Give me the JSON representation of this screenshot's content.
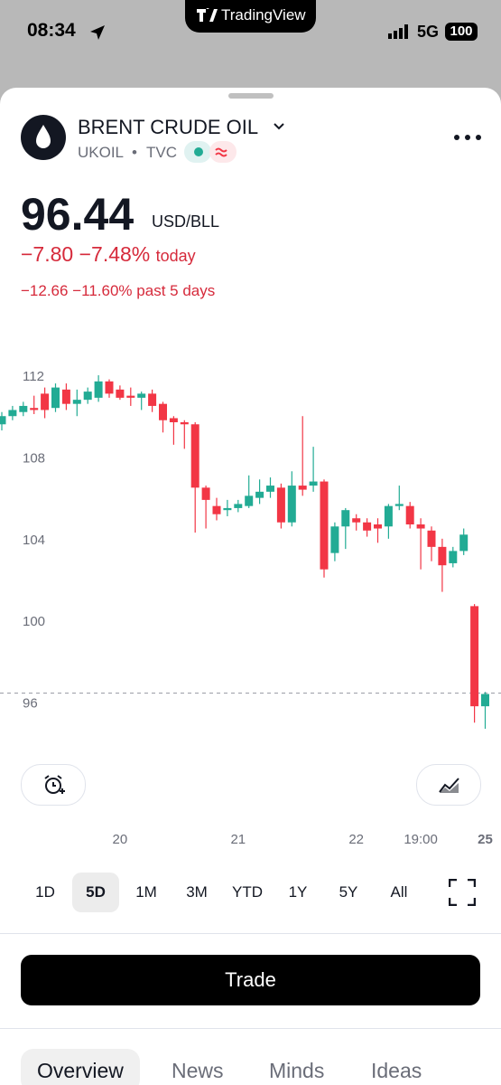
{
  "status_bar": {
    "time": "08:34",
    "app": "TradingView",
    "network": "5G",
    "battery": "100"
  },
  "header": {
    "name": "BRENT CRUDE OIL",
    "symbol": "UKOIL",
    "separator": "•",
    "exchange": "TVC"
  },
  "price": {
    "value": "96.44",
    "currency": "USD/BLL",
    "change_today": "−7.80",
    "change_today_pct": "−7.48%",
    "today_label": "today",
    "change_5d": "−12.66",
    "change_5d_pct": "−11.60%",
    "label_5d": "past 5 days"
  },
  "chart_data": {
    "type": "candlestick",
    "up_color": "#22ab94",
    "down_color": "#f23645",
    "categories": [
      null,
      null,
      null,
      null,
      null,
      null,
      null,
      null,
      null,
      null,
      null,
      "20",
      null,
      null,
      null,
      null,
      null,
      null,
      null,
      null,
      null,
      null,
      "21",
      null,
      null,
      null,
      null,
      null,
      null,
      null,
      null,
      null,
      null,
      "22",
      null,
      null,
      null,
      null,
      null,
      "19:00",
      null,
      null,
      null,
      null,
      null,
      "25"
    ],
    "open": [
      109.6,
      110.0,
      110.2,
      110.4,
      111.1,
      110.4,
      111.3,
      110.6,
      110.8,
      110.9,
      111.7,
      111.3,
      111.0,
      110.9,
      111.1,
      110.6,
      109.9,
      109.7,
      109.6,
      106.5,
      105.6,
      105.4,
      105.5,
      105.6,
      106.0,
      106.3,
      106.5,
      104.8,
      106.6,
      106.6,
      106.8,
      103.3,
      104.6,
      105.0,
      104.8,
      104.7,
      104.6,
      105.6,
      105.6,
      104.7,
      104.4,
      103.6,
      102.8,
      103.4,
      100.7,
      95.8
    ],
    "high": [
      110.2,
      110.5,
      110.7,
      111.0,
      111.4,
      111.6,
      111.6,
      111.3,
      111.4,
      112.0,
      111.8,
      111.5,
      111.4,
      111.2,
      111.3,
      110.7,
      110.0,
      109.8,
      109.7,
      106.6,
      106.0,
      105.9,
      105.9,
      107.1,
      106.9,
      107.0,
      106.7,
      107.3,
      110.0,
      108.5,
      106.9,
      104.8,
      105.5,
      105.2,
      105.0,
      105.0,
      105.7,
      106.6,
      105.8,
      105.0,
      104.6,
      104.0,
      103.6,
      104.5,
      100.8,
      96.5
    ],
    "low": [
      109.3,
      109.8,
      110.0,
      110.1,
      109.9,
      110.2,
      110.3,
      110.0,
      110.6,
      110.7,
      110.9,
      110.8,
      110.5,
      110.3,
      110.2,
      109.2,
      108.6,
      108.4,
      104.3,
      104.5,
      104.9,
      105.1,
      105.3,
      105.5,
      105.7,
      106.0,
      104.5,
      104.6,
      106.1,
      106.3,
      102.1,
      102.9,
      103.5,
      104.4,
      104.1,
      103.8,
      104.0,
      105.4,
      104.5,
      102.5,
      102.9,
      101.4,
      102.6,
      103.2,
      95.0,
      94.7
    ],
    "close": [
      110.0,
      110.3,
      110.5,
      110.3,
      110.3,
      111.4,
      110.6,
      110.8,
      111.2,
      111.7,
      111.1,
      110.9,
      110.9,
      111.1,
      110.5,
      109.8,
      109.7,
      109.6,
      106.5,
      105.9,
      105.2,
      105.5,
      105.7,
      106.1,
      106.3,
      106.6,
      104.8,
      106.6,
      106.4,
      106.8,
      102.5,
      104.6,
      105.4,
      104.8,
      104.4,
      104.5,
      105.6,
      105.7,
      104.7,
      104.5,
      103.6,
      102.7,
      103.4,
      104.2,
      95.8,
      96.4
    ],
    "ylim": [
      94.5,
      112.9
    ],
    "yticks": [
      96,
      100,
      104,
      108,
      112
    ],
    "price_line": 96.44
  },
  "periods": [
    "1D",
    "5D",
    "1M",
    "3M",
    "YTD",
    "1Y",
    "5Y",
    "All"
  ],
  "selected_period": 1,
  "trade_button": "Trade",
  "tabs": [
    "Overview",
    "News",
    "Minds",
    "Ideas"
  ],
  "active_tab": 0
}
